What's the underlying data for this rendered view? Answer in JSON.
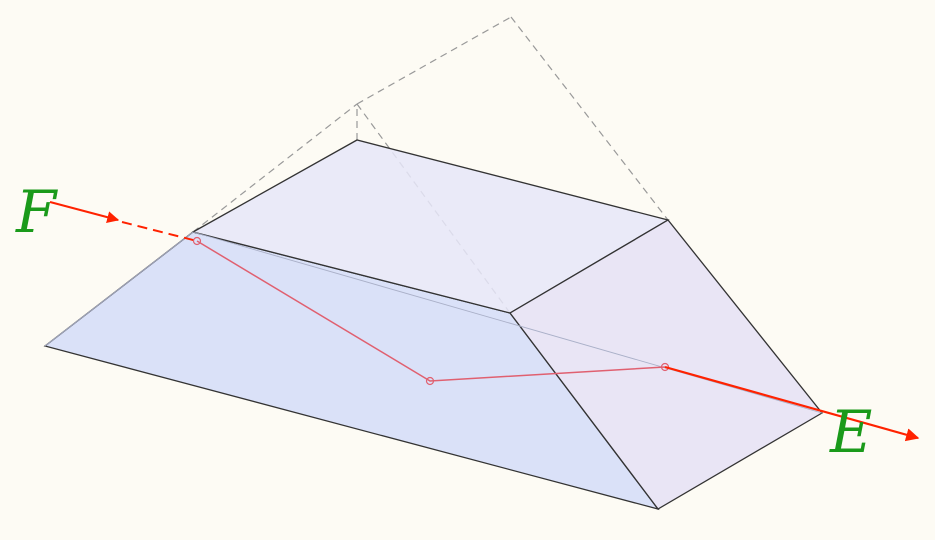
{
  "labels": {
    "entry": "F",
    "exit": "E"
  },
  "colors": {
    "background": "#fdfbf4",
    "prism_fill_front": "#d6def8",
    "prism_fill_top": "#e6e6f8",
    "prism_fill_side": "#e2def6",
    "prism_edge": "#333333",
    "hidden_edge": "#999999",
    "ray_external": "#ff2200",
    "ray_internal": "#e06070",
    "label": "#1a9a1a"
  }
}
